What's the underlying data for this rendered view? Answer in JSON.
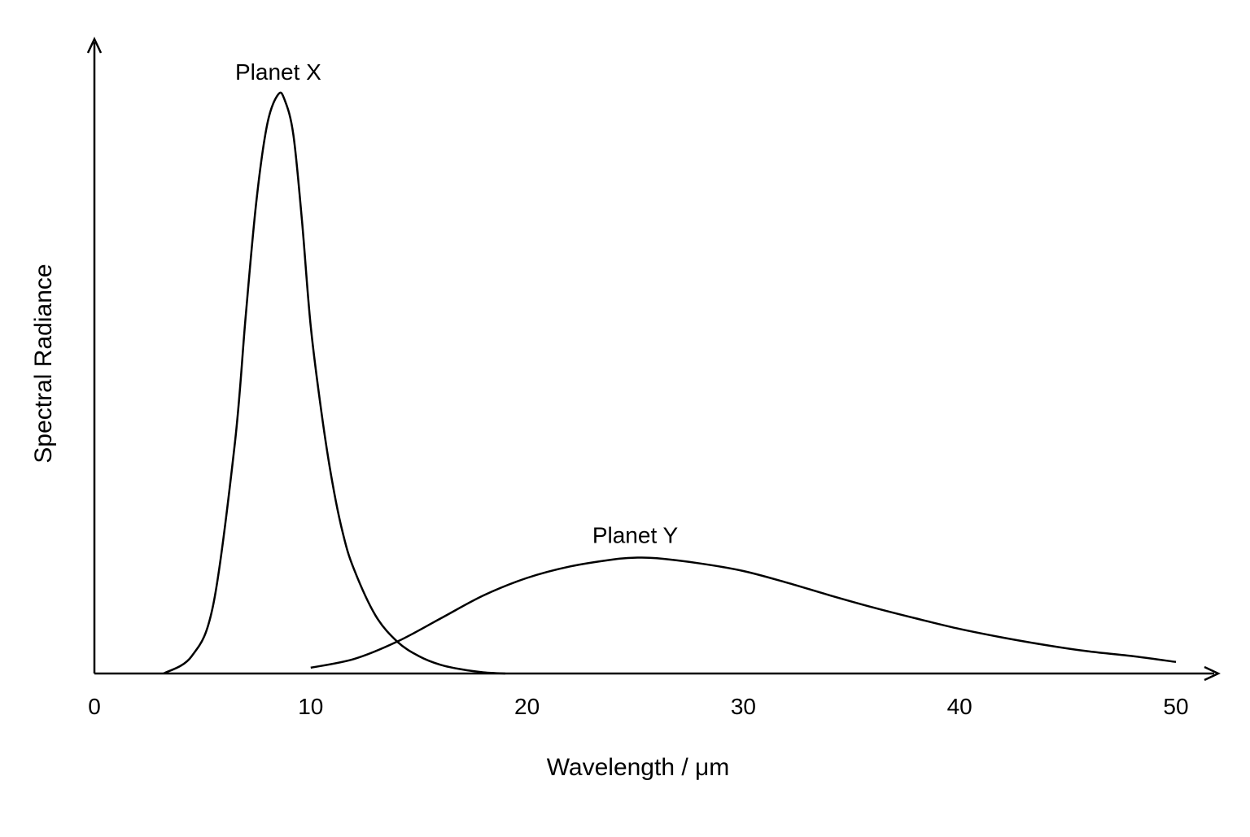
{
  "chart_data": {
    "type": "line",
    "xlabel": "Wavelength / μm",
    "ylabel": "Spectral Radiance",
    "xlim": [
      0,
      50
    ],
    "ylim": [
      0,
      1
    ],
    "x_ticks": [
      0,
      10,
      20,
      30,
      40,
      50
    ],
    "y_ticks": [],
    "grid": false,
    "legend": "none",
    "series": [
      {
        "name": "Planet X",
        "x": [
          3.2,
          4.5,
          5.5,
          6.5,
          7.0,
          7.5,
          8.0,
          8.5,
          8.8,
          9.2,
          9.6,
          10.0,
          10.5,
          11.0,
          11.5,
          12.0,
          13.0,
          14.0,
          15.0,
          16.0,
          17.0,
          18.0,
          19.0
        ],
        "y": [
          0.0,
          0.03,
          0.12,
          0.4,
          0.62,
          0.82,
          0.95,
          1.0,
          0.99,
          0.93,
          0.78,
          0.6,
          0.45,
          0.33,
          0.24,
          0.18,
          0.1,
          0.055,
          0.03,
          0.015,
          0.007,
          0.002,
          0.0
        ]
      },
      {
        "name": "Planet Y",
        "x": [
          10,
          12,
          14,
          16,
          18,
          20,
          22,
          24,
          25,
          26,
          28,
          30,
          32,
          34,
          36,
          38,
          40,
          42,
          44,
          46,
          48,
          50
        ],
        "y": [
          0.01,
          0.025,
          0.055,
          0.095,
          0.135,
          0.165,
          0.185,
          0.197,
          0.2,
          0.199,
          0.19,
          0.177,
          0.157,
          0.135,
          0.114,
          0.095,
          0.077,
          0.062,
          0.049,
          0.038,
          0.03,
          0.02
        ]
      }
    ]
  }
}
